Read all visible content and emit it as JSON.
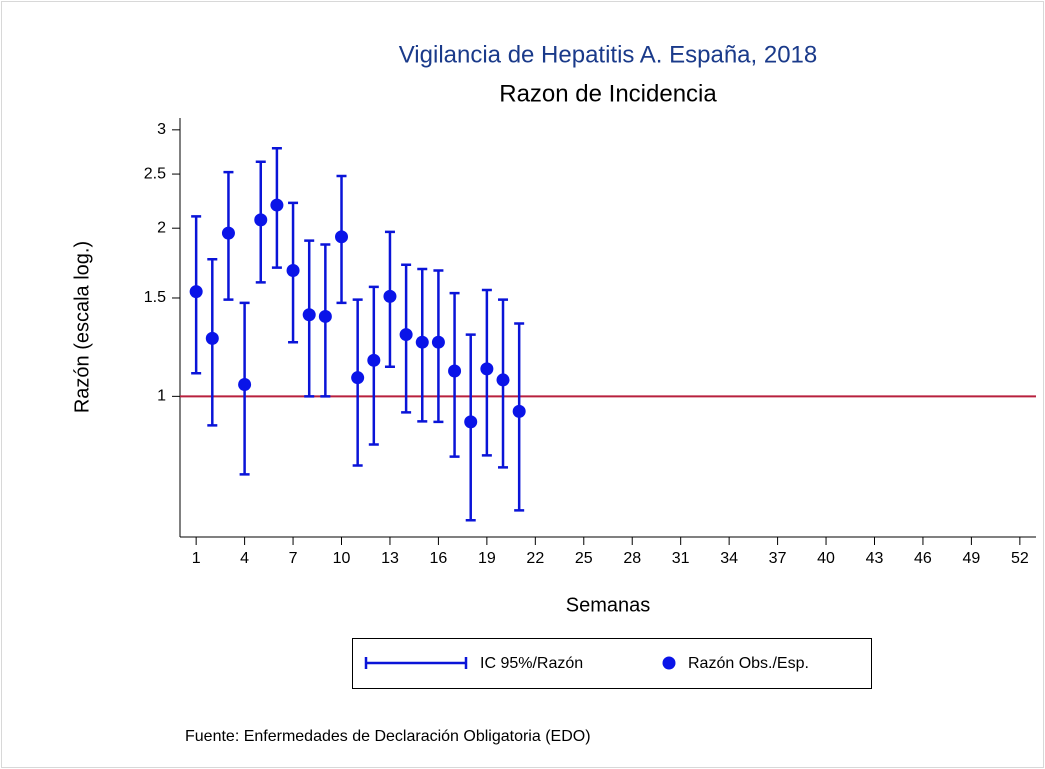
{
  "chart_data": {
    "type": "errorbar",
    "title": "Vigilancia de Hepatitis A. España, 2018",
    "subtitle": "Razon de Incidencia",
    "x_label": "Semanas",
    "y_label": "Razón (escala log.)",
    "source": "Fuente: Enfermedades de Declaración Obligatoria (EDO)",
    "x": [
      1,
      2,
      3,
      4,
      5,
      6,
      7,
      8,
      9,
      10,
      11,
      12,
      13,
      14,
      15,
      16,
      17,
      18,
      19,
      20,
      21
    ],
    "series": [
      {
        "name": "IC 95%/Razón",
        "color": "#0a14d8",
        "lower": [
          1.1,
          0.887,
          1.49,
          0.725,
          1.6,
          1.7,
          1.25,
          1.0,
          1.0,
          1.47,
          0.752,
          0.82,
          1.13,
          0.936,
          0.902,
          0.9,
          0.78,
          0.6,
          0.784,
          0.746,
          0.625
        ],
        "upper": [
          2.1,
          1.76,
          2.52,
          1.47,
          2.63,
          2.78,
          2.22,
          1.9,
          1.87,
          2.48,
          1.49,
          1.57,
          1.97,
          1.72,
          1.69,
          1.68,
          1.53,
          1.29,
          1.55,
          1.49,
          1.35
        ]
      },
      {
        "name": "Razón Obs./Esp.",
        "color": "#0a14e8",
        "values": [
          1.54,
          1.27,
          1.96,
          1.05,
          2.07,
          2.2,
          1.68,
          1.4,
          1.39,
          1.93,
          1.08,
          1.16,
          1.51,
          1.29,
          1.25,
          1.25,
          1.11,
          0.9,
          1.12,
          1.07,
          0.94
        ]
      }
    ],
    "reference_line": {
      "value": 1,
      "color": "#b8203e"
    },
    "xlim": [
      0,
      53
    ],
    "xticks": [
      1,
      4,
      7,
      10,
      13,
      16,
      19,
      22,
      25,
      28,
      31,
      34,
      37,
      40,
      43,
      46,
      49,
      52
    ],
    "ylim": [
      0.56,
      3.15
    ],
    "yticks": [
      1,
      1.5,
      2,
      2.5,
      3
    ],
    "log_y": true,
    "title_color": "#1a3a8a"
  }
}
